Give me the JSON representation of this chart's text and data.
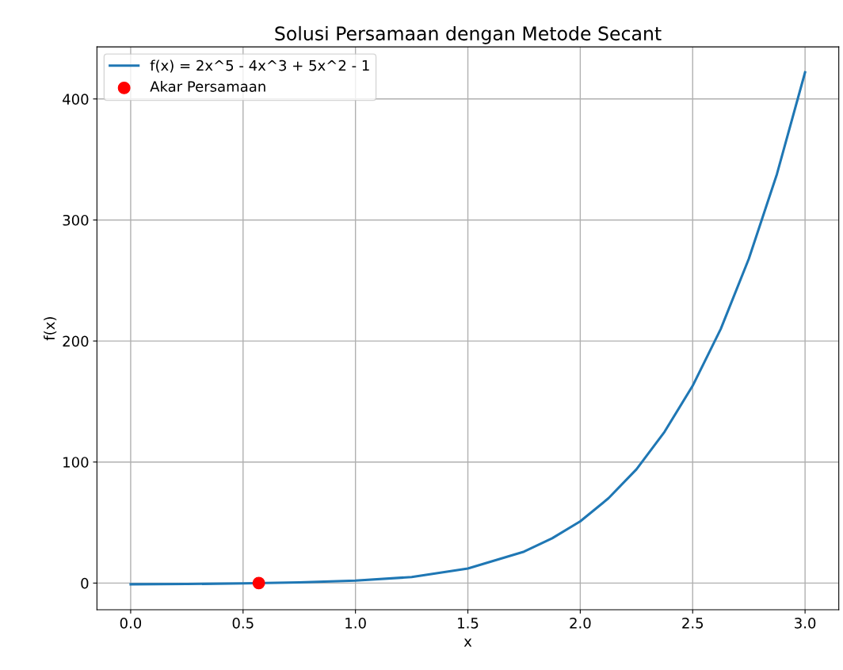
{
  "chart_data": {
    "type": "line",
    "title": "Solusi Persamaan dengan Metode Secant",
    "xlabel": "x",
    "ylabel": "f(x)",
    "series": [
      {
        "name": "f(x) = 2x^5 - 4x^3 + 5x^2 - 1",
        "color": "#1f77b4",
        "x": [
          0,
          0.25,
          0.5,
          0.75,
          1.0,
          1.25,
          1.5,
          1.75,
          1.875,
          2.0,
          2.125,
          2.25,
          2.375,
          2.5,
          2.625,
          2.75,
          2.875,
          3.0
        ],
        "values": [
          -1,
          -0.8,
          -0.2,
          0.6,
          2,
          5,
          12,
          26,
          37,
          51,
          70,
          94,
          125,
          163,
          210,
          268,
          338,
          422
        ]
      },
      {
        "name": "Akar Persamaan",
        "type": "scatter",
        "color": "#ff0000",
        "marker": "circle",
        "x": [
          0.57
        ],
        "values": [
          0
        ]
      }
    ],
    "xlim": [
      -0.15,
      3.15
    ],
    "ylim": [
      -22,
      443
    ],
    "xticks": [
      {
        "value": 0,
        "label": "0.0"
      },
      {
        "value": 0.5,
        "label": "0.5"
      },
      {
        "value": 1,
        "label": "1.0"
      },
      {
        "value": 1.5,
        "label": "1.5"
      },
      {
        "value": 2,
        "label": "2.0"
      },
      {
        "value": 2.5,
        "label": "2.5"
      },
      {
        "value": 3,
        "label": "3.0"
      }
    ],
    "yticks": [
      0,
      100,
      200,
      300,
      400
    ],
    "grid": true,
    "legend": "top left"
  }
}
